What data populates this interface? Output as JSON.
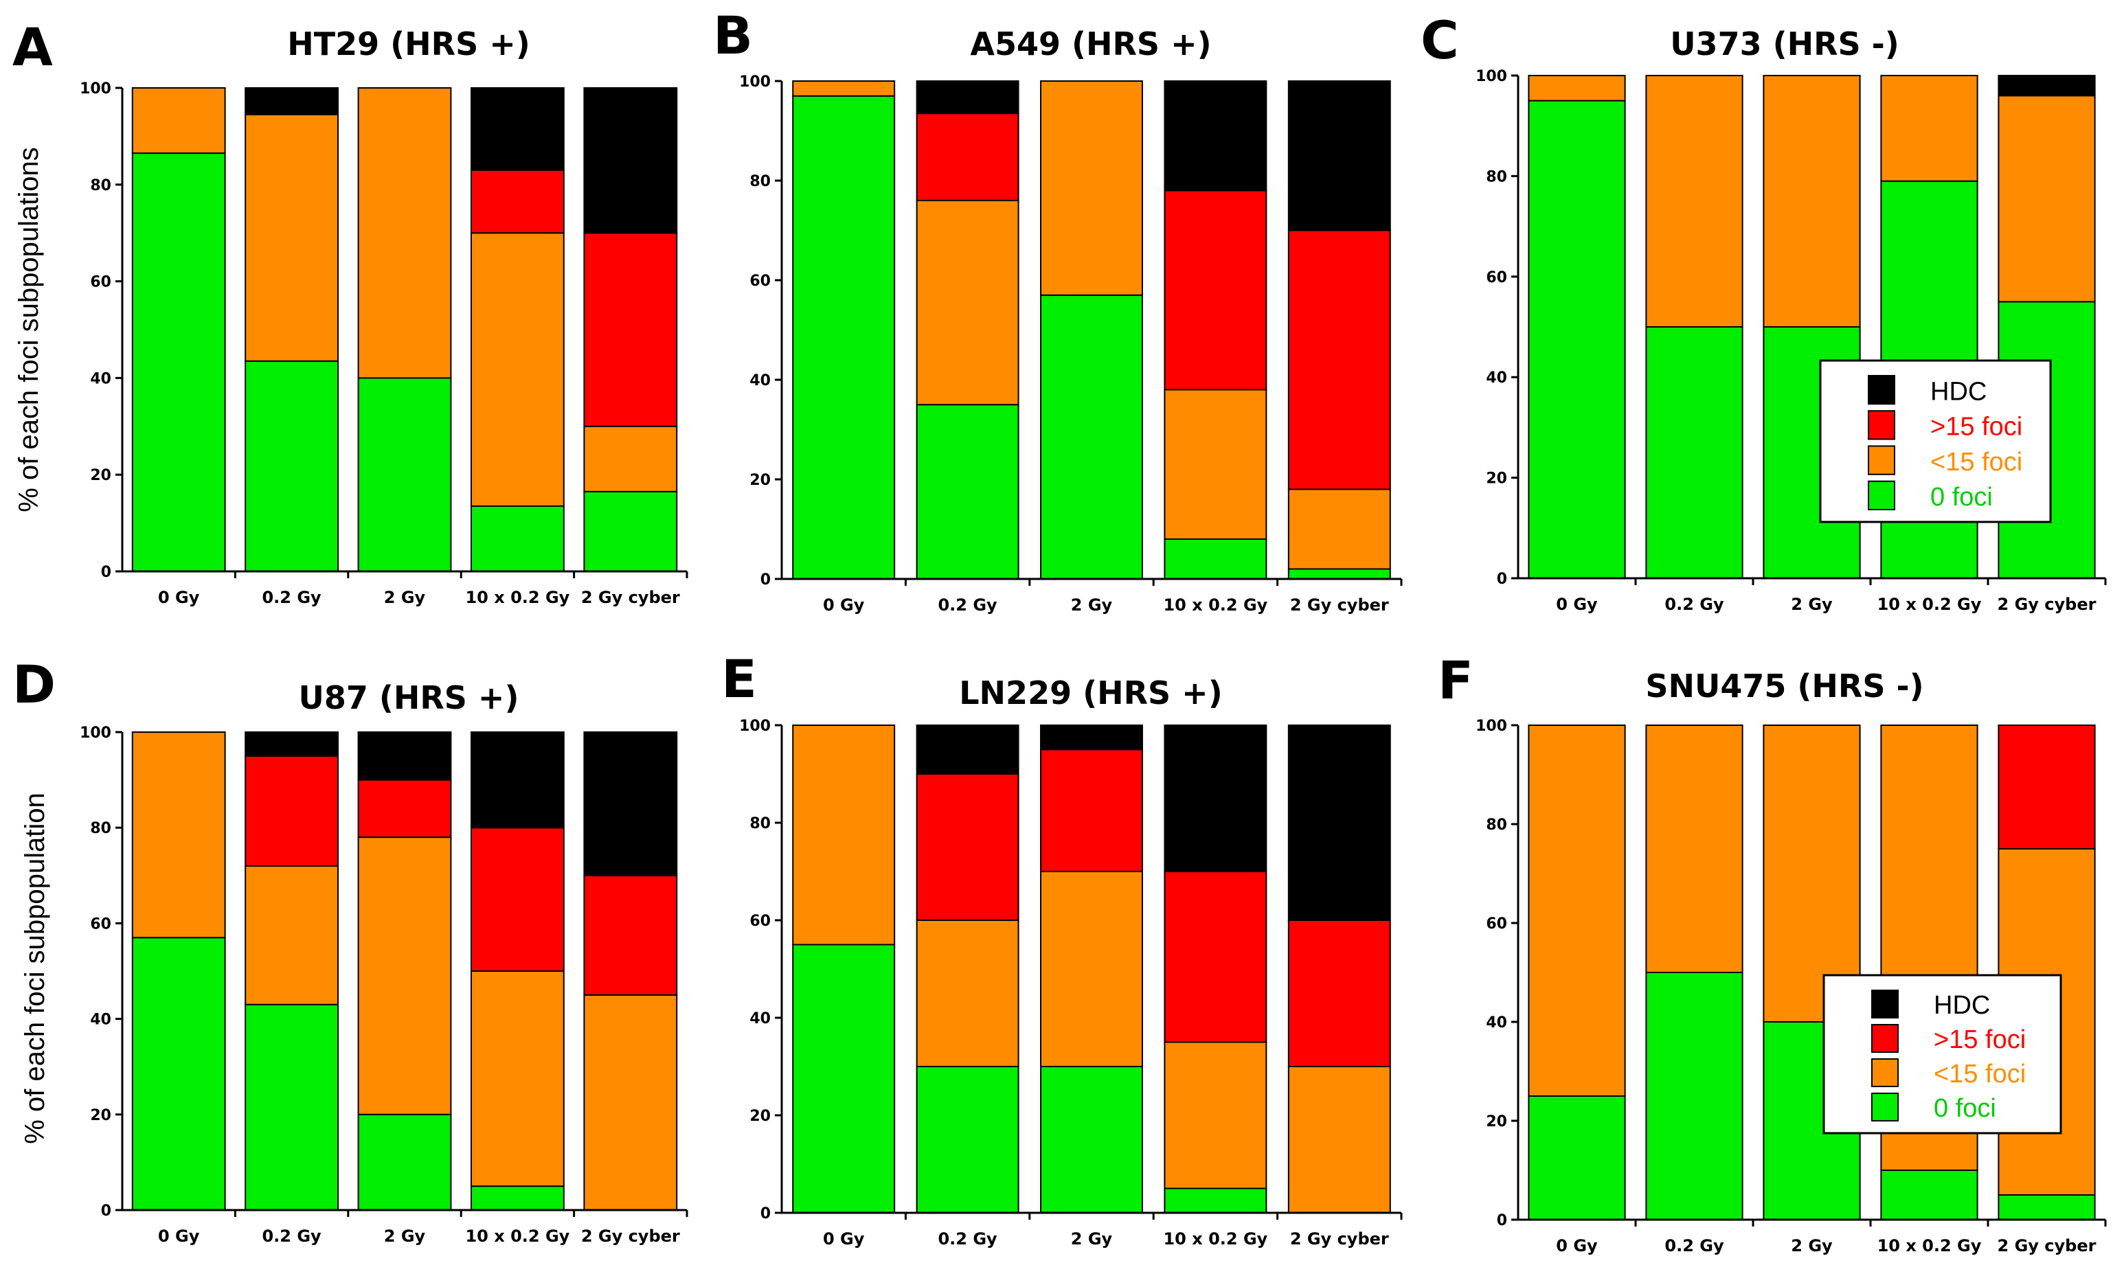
{
  "colors": {
    "HDC": "#000000",
    "gt15": "#ff0000",
    "lt15": "#ff8c00",
    "zero": "#00ee00"
  },
  "legend_entries": [
    {
      "key": "HDC",
      "label": "HDC",
      "text_color": "#000000"
    },
    {
      "key": "gt15",
      "label": ">15 foci",
      "text_color": "#ff0000"
    },
    {
      "key": "lt15",
      "label": "<15 foci",
      "text_color": "#ff8c00"
    },
    {
      "key": "zero",
      "label": "0 foci",
      "text_color": "#00cc00"
    }
  ],
  "chart_data": [
    {
      "type": "bar",
      "stacked": true,
      "letter": "A",
      "title": "HT29 (HRS +)",
      "ylabel": "% of each foci subpopulations",
      "ylim": [
        0,
        100
      ],
      "yticks": [
        0,
        20,
        40,
        60,
        80,
        100
      ],
      "categories": [
        "0 Gy",
        "0.2 Gy",
        "2 Gy",
        "10 x 0.2 Gy",
        "2 Gy cyber"
      ],
      "series": [
        {
          "key": "zero",
          "name": "0 foci",
          "values": [
            86.5,
            43.5,
            40,
            13.5,
            16.5
          ]
        },
        {
          "key": "lt15",
          "name": "<15 foci",
          "values": [
            13.5,
            51,
            60,
            56.5,
            13.5
          ]
        },
        {
          "key": "gt15",
          "name": ">15 foci",
          "values": [
            0,
            0,
            0,
            13,
            40
          ]
        },
        {
          "key": "HDC",
          "name": "HDC",
          "values": [
            0,
            5.5,
            0,
            17,
            30
          ]
        }
      ],
      "legend": false
    },
    {
      "type": "bar",
      "stacked": true,
      "letter": "B",
      "title": "A549 (HRS +)",
      "ylabel": "",
      "ylim": [
        0,
        100
      ],
      "yticks": [
        0,
        20,
        40,
        60,
        80,
        100
      ],
      "categories": [
        "0 Gy",
        "0.2 Gy",
        "2 Gy",
        "10 x 0.2 Gy",
        "2 Gy cyber"
      ],
      "series": [
        {
          "key": "zero",
          "name": "0 foci",
          "values": [
            97,
            35,
            57,
            8,
            2
          ]
        },
        {
          "key": "lt15",
          "name": "<15 foci",
          "values": [
            3,
            41,
            43,
            30,
            16
          ]
        },
        {
          "key": "gt15",
          "name": ">15 foci",
          "values": [
            0,
            17.5,
            0,
            40,
            52
          ]
        },
        {
          "key": "HDC",
          "name": "HDC",
          "values": [
            0,
            6.5,
            0,
            22,
            30
          ]
        }
      ],
      "legend": false
    },
    {
      "type": "bar",
      "stacked": true,
      "letter": "C",
      "title": "U373 (HRS -)",
      "ylabel": "",
      "ylim": [
        0,
        100
      ],
      "yticks": [
        0,
        20,
        40,
        60,
        80,
        100
      ],
      "categories": [
        "0 Gy",
        "0.2 Gy",
        "2 Gy",
        "10 x 0.2 Gy",
        "2 Gy cyber"
      ],
      "series": [
        {
          "key": "zero",
          "name": "0 foci",
          "values": [
            95,
            50,
            50,
            79,
            55
          ]
        },
        {
          "key": "lt15",
          "name": "<15 foci",
          "values": [
            5,
            50,
            50,
            21,
            41
          ]
        },
        {
          "key": "gt15",
          "name": ">15 foci",
          "values": [
            0,
            0,
            0,
            0,
            0
          ]
        },
        {
          "key": "HDC",
          "name": "HDC",
          "values": [
            0,
            0,
            0,
            0,
            4
          ]
        }
      ],
      "legend": true
    },
    {
      "type": "bar",
      "stacked": true,
      "letter": "D",
      "title": "U87 (HRS +)",
      "ylabel": "% of each foci subpopulation",
      "ylim": [
        0,
        100
      ],
      "yticks": [
        0,
        20,
        40,
        60,
        80,
        100
      ],
      "categories": [
        "0 Gy",
        "0.2 Gy",
        "2 Gy",
        "10 x 0.2 Gy",
        "2 Gy cyber"
      ],
      "series": [
        {
          "key": "zero",
          "name": "0 foci",
          "values": [
            57,
            43,
            20,
            5,
            0
          ]
        },
        {
          "key": "lt15",
          "name": "<15 foci",
          "values": [
            43,
            29,
            58,
            45,
            45
          ]
        },
        {
          "key": "gt15",
          "name": ">15 foci",
          "values": [
            0,
            23,
            12,
            30,
            25
          ]
        },
        {
          "key": "HDC",
          "name": "HDC",
          "values": [
            0,
            5,
            10,
            20,
            30
          ]
        }
      ],
      "legend": false
    },
    {
      "type": "bar",
      "stacked": true,
      "letter": "E",
      "title": "LN229 (HRS +)",
      "ylabel": "",
      "ylim": [
        0,
        100
      ],
      "yticks": [
        0,
        20,
        40,
        60,
        80,
        100
      ],
      "categories": [
        "0 Gy",
        "0.2 Gy",
        "2 Gy",
        "10 x 0.2 Gy",
        "2 Gy cyber"
      ],
      "series": [
        {
          "key": "zero",
          "name": "0 foci",
          "values": [
            55,
            30,
            30,
            5,
            0
          ]
        },
        {
          "key": "lt15",
          "name": "<15 foci",
          "values": [
            45,
            30,
            40,
            30,
            30
          ]
        },
        {
          "key": "gt15",
          "name": ">15 foci",
          "values": [
            0,
            30,
            25,
            35,
            30
          ]
        },
        {
          "key": "HDC",
          "name": "HDC",
          "values": [
            0,
            10,
            5,
            30,
            40
          ]
        }
      ],
      "legend": false
    },
    {
      "type": "bar",
      "stacked": true,
      "letter": "F",
      "title": "SNU475 (HRS -)",
      "ylabel": "",
      "ylim": [
        0,
        100
      ],
      "yticks": [
        0,
        20,
        40,
        60,
        80,
        100
      ],
      "categories": [
        "0 Gy",
        "0.2 Gy",
        "2 Gy",
        "10 x 0.2 Gy",
        "2 Gy cyber"
      ],
      "series": [
        {
          "key": "zero",
          "name": "0 foci",
          "values": [
            25,
            50,
            40,
            10,
            5
          ]
        },
        {
          "key": "lt15",
          "name": "<15 foci",
          "values": [
            75,
            50,
            60,
            90,
            70
          ]
        },
        {
          "key": "gt15",
          "name": ">15 foci",
          "values": [
            0,
            0,
            0,
            0,
            25
          ]
        },
        {
          "key": "HDC",
          "name": "HDC",
          "values": [
            0,
            0,
            0,
            0,
            0
          ]
        }
      ],
      "legend": true
    }
  ]
}
